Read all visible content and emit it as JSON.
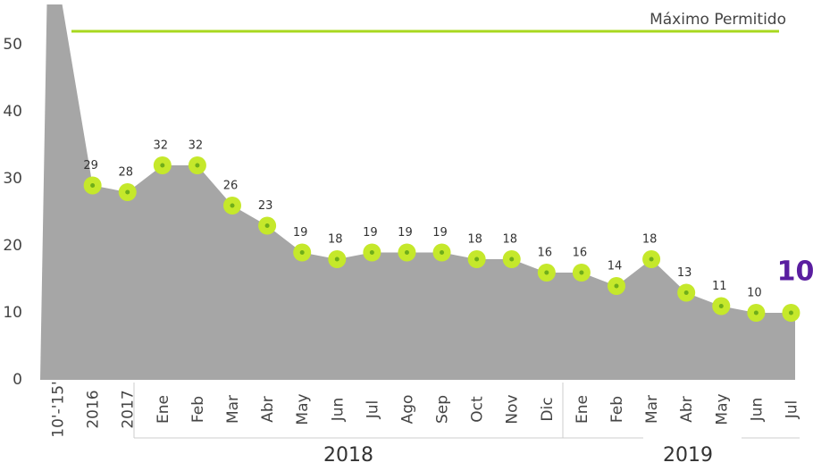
{
  "chart_data": {
    "type": "area",
    "categories": [
      "10'-'15'",
      "2016",
      "2017",
      "Ene",
      "Feb",
      "Mar",
      "Abr",
      "May",
      "Jun",
      "Jul",
      "Ago",
      "Sep",
      "Oct",
      "Nov",
      "Dic",
      "Ene",
      "Feb",
      "Mar",
      "Abr",
      "May",
      "Jun",
      "Jul"
    ],
    "values": [
      60,
      29,
      28,
      32,
      32,
      26,
      23,
      19,
      18,
      19,
      19,
      19,
      18,
      18,
      16,
      16,
      14,
      18,
      13,
      11,
      10,
      10
    ],
    "value_labels": [
      null,
      "29",
      "28",
      "32",
      "32",
      "26",
      "23",
      "19",
      "18",
      "19",
      "19",
      "19",
      "18",
      "18",
      "16",
      "16",
      "14",
      "18",
      "13",
      "11",
      "10",
      "10"
    ],
    "color": "#a6a6a6",
    "marker_color": "#c5e82b",
    "marker_dot_color": "#6fae1a",
    "highlight_color": "#5a1ea0",
    "group_labels": [
      "2018",
      "2019"
    ],
    "reference_line": {
      "label": "Máximo Permitido",
      "value": 52,
      "color": "#a8d81f"
    },
    "ylim": [
      0,
      56
    ],
    "yticks": [
      0,
      10,
      20,
      30,
      40,
      50
    ]
  }
}
